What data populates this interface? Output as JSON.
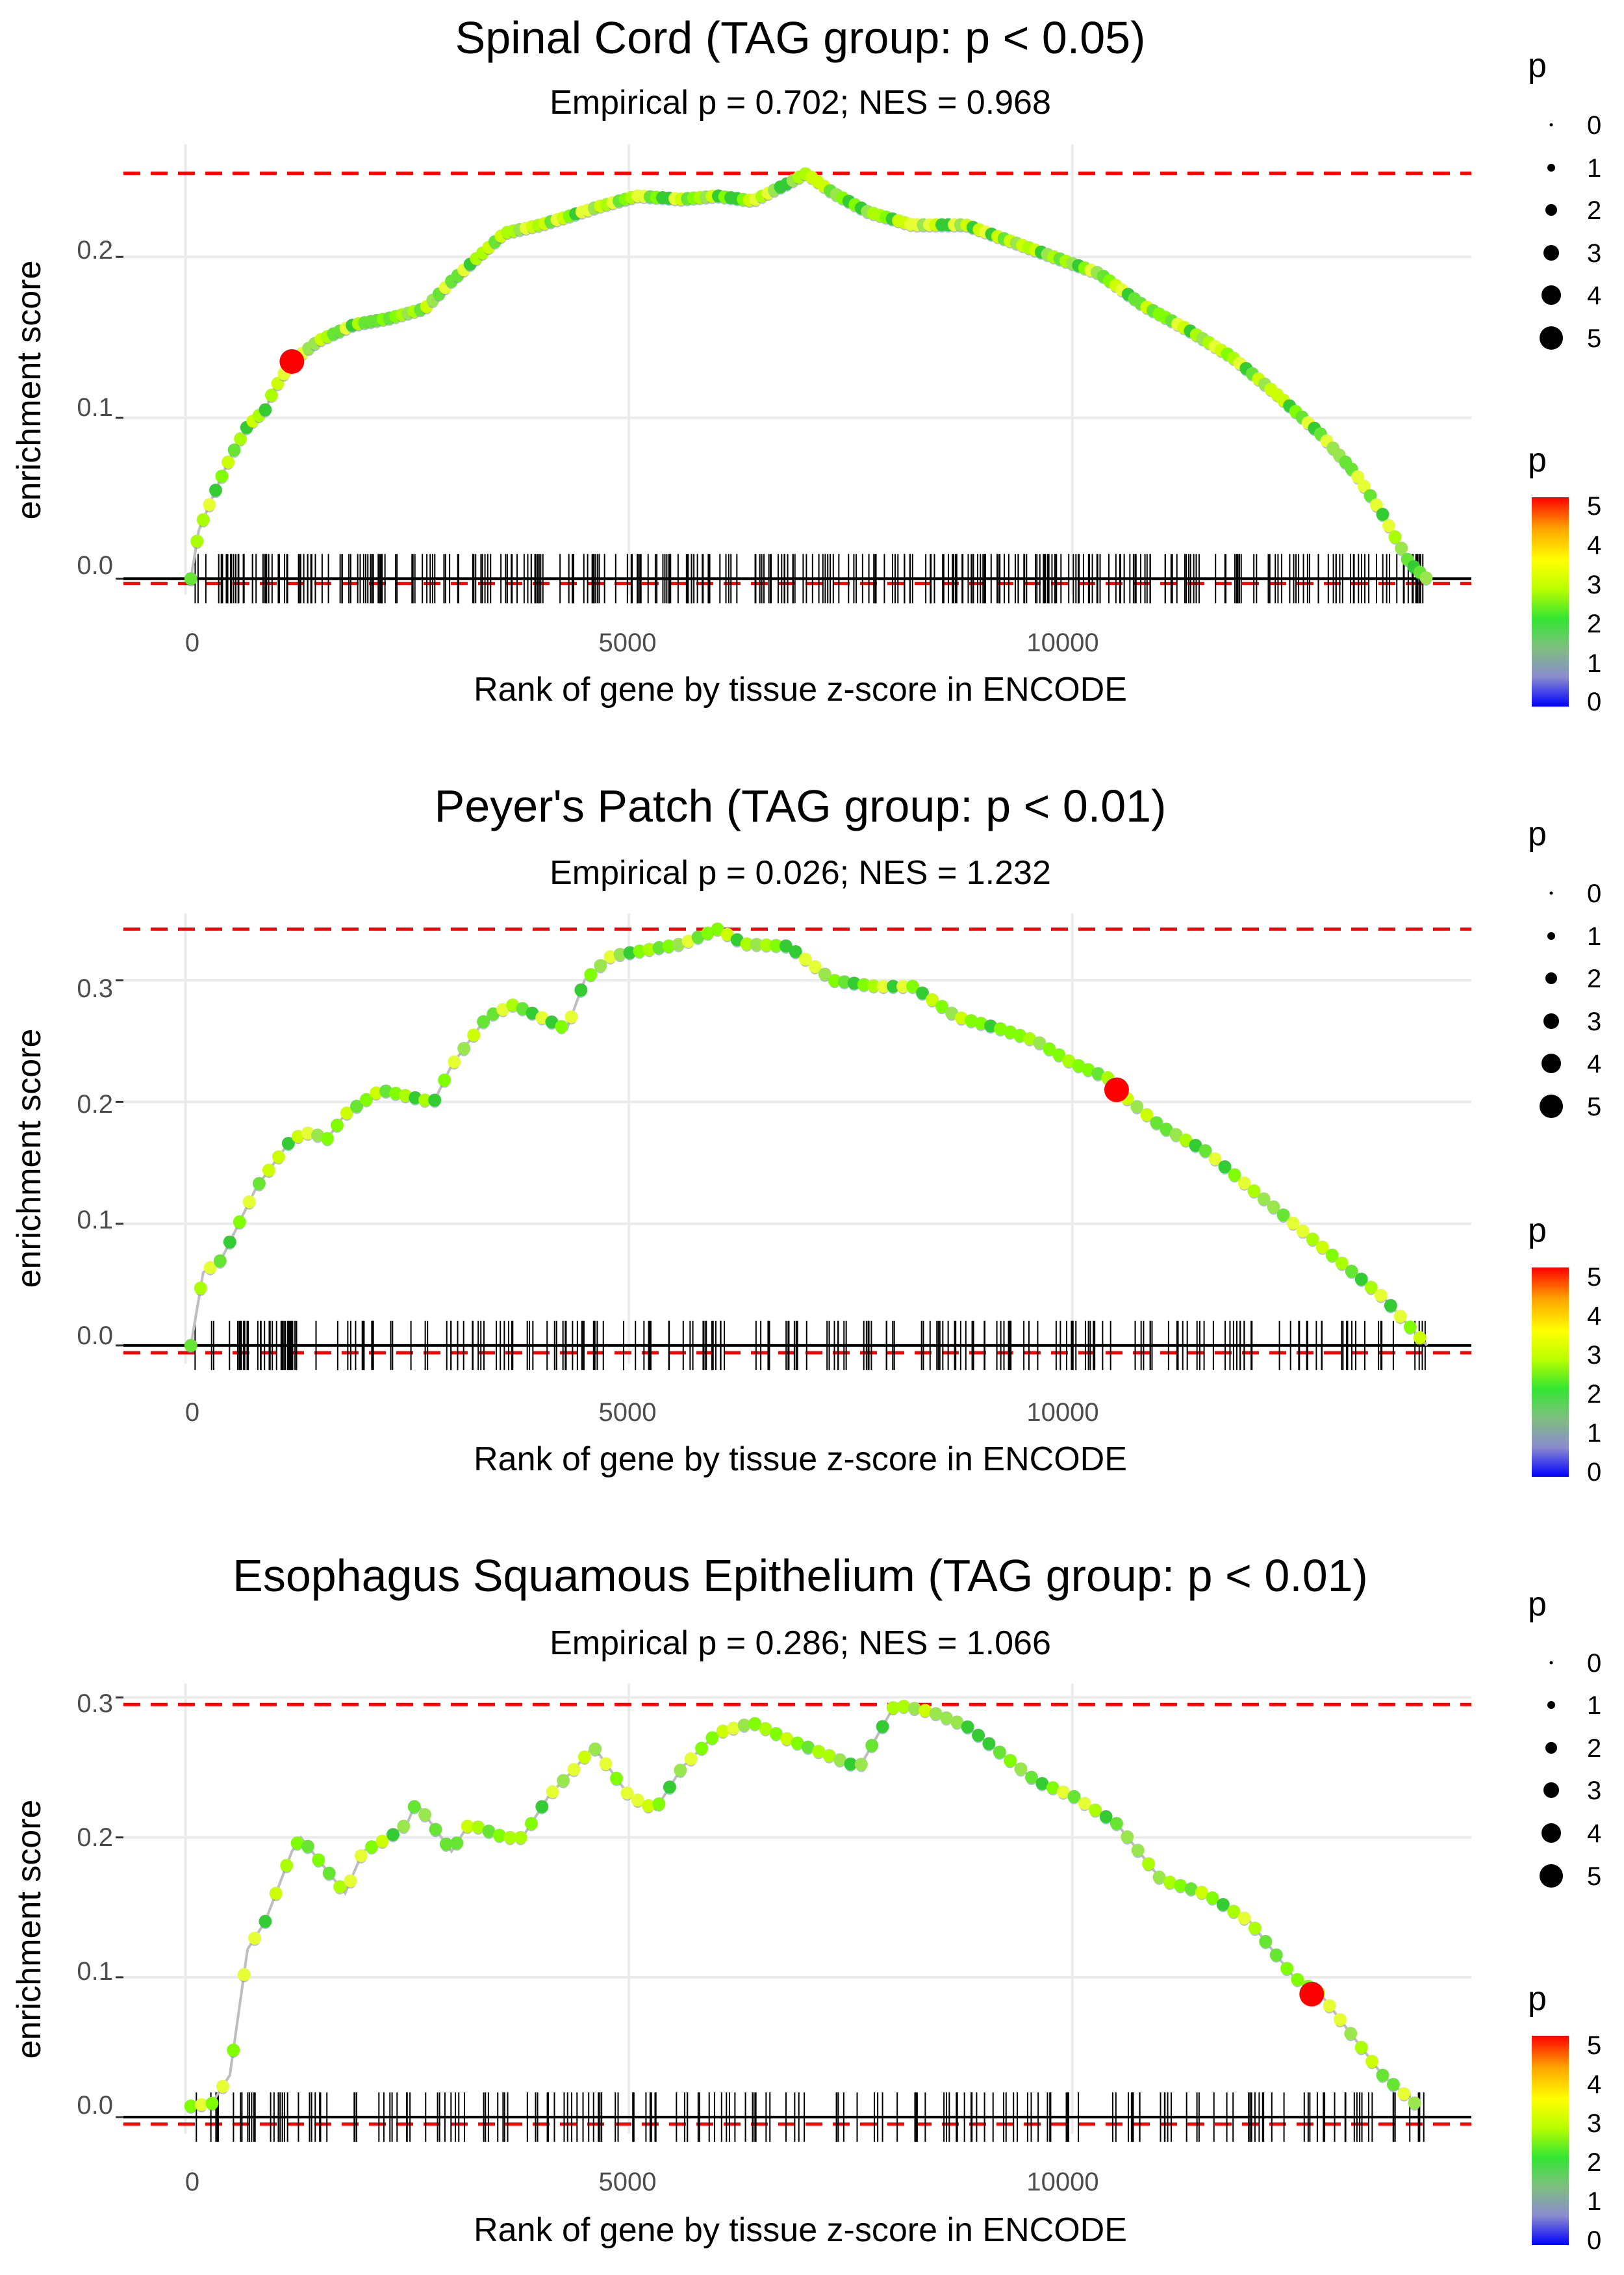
{
  "chart_data": [
    {
      "type": "line",
      "title": "Spinal Cord (TAG group: p < 0.05)",
      "subtitle": "Empirical p = 0.702; NES = 0.968",
      "xlabel": "Rank of gene by tissue z-score in ENCODE",
      "ylabel": "enrichment score",
      "xlim": [
        -700,
        14500
      ],
      "ylim": [
        -0.01,
        0.27
      ],
      "x_ticks": [
        0,
        5000,
        10000
      ],
      "x_tick_labels": [
        "0",
        "5000",
        "10000"
      ],
      "y_ticks": [
        0.0,
        0.1,
        0.2
      ],
      "y_tick_labels": [
        "0.0",
        "0.1",
        "0.2"
      ],
      "es_max": 0.252,
      "es_min": -0.003,
      "curve": [
        [
          60,
          0
        ],
        [
          150,
          0.03
        ],
        [
          300,
          0.05
        ],
        [
          500,
          0.075
        ],
        [
          700,
          0.095
        ],
        [
          900,
          0.105
        ],
        [
          1000,
          0.118
        ],
        [
          1200,
          0.135
        ],
        [
          1500,
          0.148
        ],
        [
          1900,
          0.158
        ],
        [
          2300,
          0.162
        ],
        [
          2700,
          0.168
        ],
        [
          3000,
          0.185
        ],
        [
          3300,
          0.2
        ],
        [
          3600,
          0.215
        ],
        [
          4000,
          0.22
        ],
        [
          4300,
          0.225
        ],
        [
          4700,
          0.232
        ],
        [
          5100,
          0.238
        ],
        [
          5600,
          0.236
        ],
        [
          6000,
          0.238
        ],
        [
          6400,
          0.235
        ],
        [
          6800,
          0.246
        ],
        [
          7000,
          0.252
        ],
        [
          7300,
          0.24
        ],
        [
          7700,
          0.228
        ],
        [
          8200,
          0.22
        ],
        [
          8800,
          0.22
        ],
        [
          9300,
          0.21
        ],
        [
          9800,
          0.2
        ],
        [
          10300,
          0.19
        ],
        [
          10800,
          0.17
        ],
        [
          11300,
          0.155
        ],
        [
          11800,
          0.138
        ],
        [
          12300,
          0.115
        ],
        [
          12800,
          0.09
        ],
        [
          13200,
          0.065
        ],
        [
          13500,
          0.04
        ],
        [
          13800,
          0.01
        ],
        [
          14000,
          0.0
        ]
      ],
      "point_step": 70,
      "highlight": {
        "x": 1200,
        "y": 0.135
      },
      "rug": {
        "n": 340,
        "x_start": 100,
        "x_end": 14000,
        "seed": 11
      }
    },
    {
      "type": "line",
      "title": "Peyer's Patch (TAG group: p < 0.01)",
      "subtitle": "Empirical p = 0.026; NES = 1.232",
      "xlabel": "Rank of gene by tissue z-score in ENCODE",
      "ylabel": "enrichment score",
      "xlim": [
        -700,
        14500
      ],
      "ylim": [
        -0.015,
        0.355
      ],
      "x_ticks": [
        0,
        5000,
        10000
      ],
      "x_tick_labels": [
        "0",
        "5000",
        "10000"
      ],
      "y_ticks": [
        0.0,
        0.1,
        0.2,
        0.3
      ],
      "y_tick_labels": [
        "0.0",
        "0.1",
        "0.2",
        "0.3"
      ],
      "es_max": 0.342,
      "es_min": -0.006,
      "curve": [
        [
          60,
          0
        ],
        [
          200,
          0.06
        ],
        [
          400,
          0.07
        ],
        [
          600,
          0.1
        ],
        [
          800,
          0.13
        ],
        [
          1000,
          0.15
        ],
        [
          1200,
          0.17
        ],
        [
          1400,
          0.175
        ],
        [
          1600,
          0.17
        ],
        [
          1800,
          0.19
        ],
        [
          2000,
          0.2
        ],
        [
          2200,
          0.21
        ],
        [
          2500,
          0.205
        ],
        [
          2800,
          0.2
        ],
        [
          3000,
          0.23
        ],
        [
          3200,
          0.25
        ],
        [
          3400,
          0.27
        ],
        [
          3700,
          0.28
        ],
        [
          4000,
          0.27
        ],
        [
          4300,
          0.26
        ],
        [
          4500,
          0.3
        ],
        [
          4800,
          0.32
        ],
        [
          5200,
          0.325
        ],
        [
          5600,
          0.33
        ],
        [
          6000,
          0.342
        ],
        [
          6300,
          0.33
        ],
        [
          6800,
          0.328
        ],
        [
          7300,
          0.3
        ],
        [
          7800,
          0.295
        ],
        [
          8200,
          0.295
        ],
        [
          8700,
          0.27
        ],
        [
          9200,
          0.26
        ],
        [
          9600,
          0.25
        ],
        [
          10000,
          0.232
        ],
        [
          10400,
          0.22
        ],
        [
          10500,
          0.21
        ],
        [
          11000,
          0.18
        ],
        [
          11500,
          0.16
        ],
        [
          12000,
          0.13
        ],
        [
          12500,
          0.1
        ],
        [
          13000,
          0.07
        ],
        [
          13500,
          0.04
        ],
        [
          14000,
          0.0
        ]
      ],
      "point_step": 110,
      "highlight": {
        "x": 10500,
        "y": 0.21
      },
      "rug": {
        "n": 230,
        "x_start": 100,
        "x_end": 14000,
        "seed": 23
      }
    },
    {
      "type": "line",
      "title": "Esophagus Squamous Epithelium (TAG group: p < 0.01)",
      "subtitle": "Empirical p = 0.286; NES = 1.066",
      "xlabel": "Rank of gene by tissue z-score in ENCODE",
      "ylabel": "enrichment score",
      "xlim": [
        -700,
        14500
      ],
      "ylim": [
        -0.012,
        0.31
      ],
      "x_ticks": [
        0,
        5000,
        10000
      ],
      "x_tick_labels": [
        "0",
        "5000",
        "10000"
      ],
      "y_ticks": [
        0.0,
        0.1,
        0.2,
        0.3
      ],
      "y_tick_labels": [
        "0.0",
        "0.1",
        "0.2",
        "0.3"
      ],
      "es_max": 0.295,
      "es_min": -0.005,
      "curve": [
        [
          60,
          0.008
        ],
        [
          300,
          0.01
        ],
        [
          500,
          0.03
        ],
        [
          700,
          0.12
        ],
        [
          900,
          0.14
        ],
        [
          1200,
          0.19
        ],
        [
          1300,
          0.2
        ],
        [
          1800,
          0.16
        ],
        [
          2000,
          0.19
        ],
        [
          2300,
          0.2
        ],
        [
          2500,
          0.21
        ],
        [
          2600,
          0.225
        ],
        [
          3000,
          0.19
        ],
        [
          3200,
          0.21
        ],
        [
          3600,
          0.2
        ],
        [
          3800,
          0.2
        ],
        [
          4100,
          0.23
        ],
        [
          4400,
          0.25
        ],
        [
          4600,
          0.265
        ],
        [
          5000,
          0.23
        ],
        [
          5300,
          0.22
        ],
        [
          5600,
          0.25
        ],
        [
          6000,
          0.275
        ],
        [
          6400,
          0.282
        ],
        [
          6800,
          0.27
        ],
        [
          7200,
          0.26
        ],
        [
          7600,
          0.25
        ],
        [
          8000,
          0.295
        ],
        [
          8400,
          0.29
        ],
        [
          8800,
          0.28
        ],
        [
          9200,
          0.26
        ],
        [
          9600,
          0.24
        ],
        [
          10000,
          0.23
        ],
        [
          10500,
          0.21
        ],
        [
          11000,
          0.17
        ],
        [
          11500,
          0.16
        ],
        [
          12000,
          0.14
        ],
        [
          12500,
          0.1
        ],
        [
          12800,
          0.088
        ],
        [
          13500,
          0.03
        ],
        [
          13900,
          0.008
        ]
      ],
      "point_step": 120,
      "highlight": {
        "x": 12700,
        "y": 0.088
      },
      "rug": {
        "n": 200,
        "x_start": 100,
        "x_end": 14000,
        "seed": 37
      }
    }
  ],
  "legend": {
    "size_title": "p",
    "size_labels": [
      "0",
      "1",
      "2",
      "3",
      "4",
      "5"
    ],
    "color_title": "p",
    "color_labels": [
      "0",
      "1",
      "2",
      "3",
      "4",
      "5"
    ],
    "color_stops": [
      "#0000ff",
      "#8a8ad0",
      "#7fbf7f",
      "#33e633",
      "#b8ff00",
      "#ffff00",
      "#ffa500",
      "#ff0000"
    ]
  },
  "colors": {
    "grid": "#ebebeb",
    "curve_line": "#bebebe",
    "threshold_line": "#ff0000",
    "zero_line": "#000000",
    "highlight": "#ff0000",
    "point_palette": [
      "#33cc33",
      "#66e633",
      "#7fff00",
      "#aaff00",
      "#ccff00",
      "#e6ff33",
      "#99e64d"
    ]
  }
}
